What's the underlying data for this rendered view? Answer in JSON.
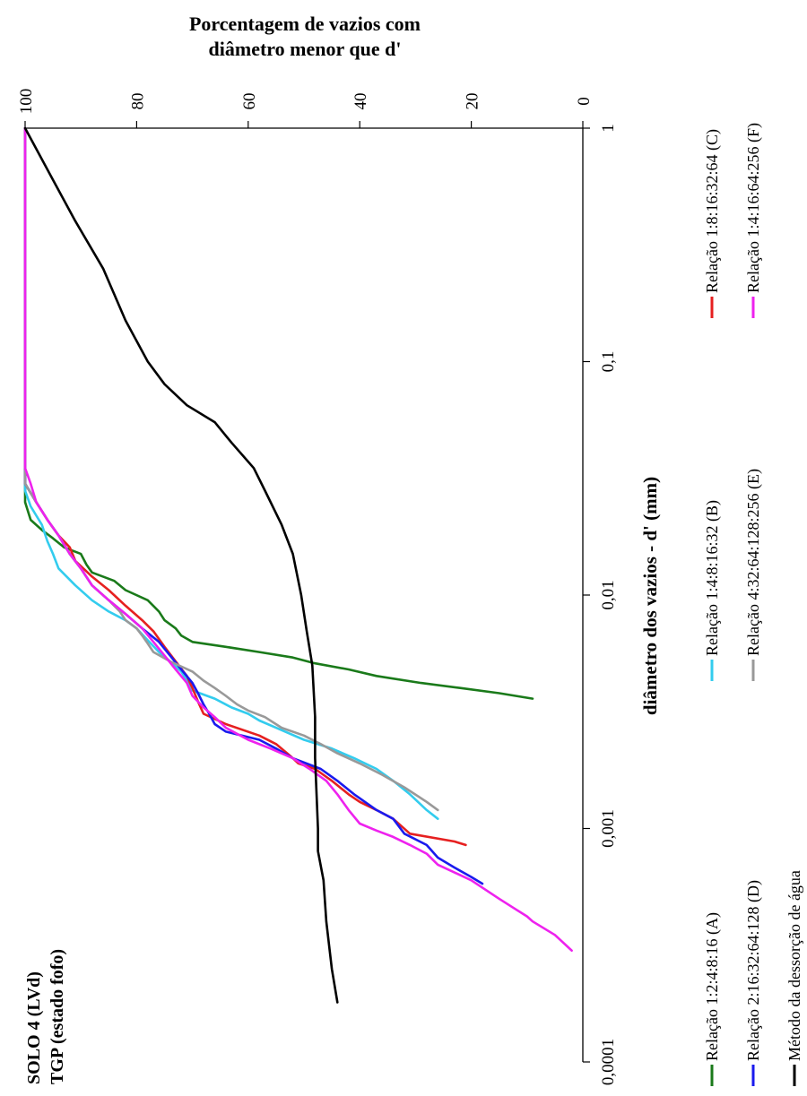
{
  "chart_data": {
    "type": "line",
    "title": "Porcentagem de vazios com diâmetro menor que d'",
    "title_lines": [
      "Porcentagem de vazios com",
      "diâmetro menor que d'"
    ],
    "subtitle_lines": [
      "SOLO 4 (LVd)",
      "TGP (estado fofo)"
    ],
    "xlabel": "diâmetro dos vazios - d' (mm)",
    "ylabel": "Porcentagem de vazios com diâmetro menor que d'",
    "x_scale": "log",
    "x_ticks": [
      "0,0001",
      "0,001",
      "0,01",
      "0,1",
      "1"
    ],
    "y_ticks": [
      "100",
      "80",
      "60",
      "40",
      "20",
      "0"
    ],
    "xlim": [
      0.0001,
      1
    ],
    "ylim": [
      0,
      100
    ],
    "grid": false,
    "orientation": "rotated 90° counter-clockwise",
    "legend_position": "bottom",
    "series": [
      {
        "name": "Relação 1:2:4:8:16 (A)",
        "color": "#1a7a1a",
        "points": [
          [
            1,
            100
          ],
          [
            0.025,
            100
          ],
          [
            0.021,
            99
          ],
          [
            0.019,
            97
          ],
          [
            0.0175,
            95
          ],
          [
            0.016,
            93
          ],
          [
            0.015,
            90
          ],
          [
            0.0135,
            89
          ],
          [
            0.0125,
            88
          ],
          [
            0.0115,
            84
          ],
          [
            0.0105,
            82
          ],
          [
            0.0095,
            78
          ],
          [
            0.0085,
            76
          ],
          [
            0.0078,
            75
          ],
          [
            0.0072,
            73
          ],
          [
            0.0067,
            72
          ],
          [
            0.0063,
            70
          ],
          [
            0.006,
            64
          ],
          [
            0.0057,
            58
          ],
          [
            0.0054,
            52
          ],
          [
            0.0051,
            48
          ],
          [
            0.0048,
            42
          ],
          [
            0.0045,
            37
          ],
          [
            0.0042,
            29
          ],
          [
            0.004,
            22
          ],
          [
            0.0038,
            15
          ],
          [
            0.0036,
            9
          ]
        ]
      },
      {
        "name": "Relação 1:4:8:16:32 (B)",
        "color": "#33ccee",
        "points": [
          [
            1,
            100
          ],
          [
            0.028,
            100
          ],
          [
            0.024,
            99
          ],
          [
            0.02,
            97
          ],
          [
            0.017,
            96
          ],
          [
            0.015,
            95
          ],
          [
            0.013,
            94
          ],
          [
            0.011,
            91
          ],
          [
            0.0095,
            88
          ],
          [
            0.0085,
            85
          ],
          [
            0.0078,
            82
          ],
          [
            0.0072,
            80
          ],
          [
            0.0064,
            78
          ],
          [
            0.0057,
            76
          ],
          [
            0.0052,
            74
          ],
          [
            0.0047,
            72
          ],
          [
            0.0043,
            71
          ],
          [
            0.0039,
            70
          ],
          [
            0.0036,
            66
          ],
          [
            0.0033,
            63
          ],
          [
            0.0031,
            60
          ],
          [
            0.0029,
            58
          ],
          [
            0.0027,
            55
          ],
          [
            0.0024,
            50
          ],
          [
            0.0022,
            45
          ],
          [
            0.002,
            41
          ],
          [
            0.0018,
            37
          ],
          [
            0.0016,
            34
          ],
          [
            0.0014,
            31
          ],
          [
            0.0012,
            28
          ],
          [
            0.0011,
            26
          ]
        ]
      },
      {
        "name": "Relação 1:8:16:32:64 (C)",
        "color": "#e62020",
        "points": [
          [
            1,
            100
          ],
          [
            0.03,
            100
          ],
          [
            0.025,
            98
          ],
          [
            0.021,
            96
          ],
          [
            0.018,
            94
          ],
          [
            0.016,
            92
          ],
          [
            0.014,
            91
          ],
          [
            0.012,
            88
          ],
          [
            0.0105,
            85
          ],
          [
            0.009,
            82
          ],
          [
            0.0078,
            79
          ],
          [
            0.007,
            77
          ],
          [
            0.006,
            75
          ],
          [
            0.0052,
            73
          ],
          [
            0.0045,
            71
          ],
          [
            0.004,
            70
          ],
          [
            0.0035,
            69
          ],
          [
            0.0031,
            68
          ],
          [
            0.0028,
            64
          ],
          [
            0.0025,
            58
          ],
          [
            0.0023,
            55
          ],
          [
            0.0021,
            53
          ],
          [
            0.002,
            52
          ],
          [
            0.0019,
            51
          ],
          [
            0.0018,
            48
          ],
          [
            0.0016,
            45
          ],
          [
            0.0014,
            42
          ],
          [
            0.0013,
            40
          ],
          [
            0.0012,
            37
          ],
          [
            0.0011,
            34
          ],
          [
            0.00095,
            31
          ],
          [
            0.00088,
            23
          ],
          [
            0.00085,
            21
          ]
        ]
      },
      {
        "name": "Relação 2:16:32:64:128 (D)",
        "color": "#1a1aee",
        "points": [
          [
            1,
            100
          ],
          [
            0.03,
            100
          ],
          [
            0.025,
            98
          ],
          [
            0.021,
            96
          ],
          [
            0.018,
            94
          ],
          [
            0.015,
            92
          ],
          [
            0.013,
            90
          ],
          [
            0.011,
            88
          ],
          [
            0.0095,
            85
          ],
          [
            0.0083,
            82
          ],
          [
            0.0072,
            79
          ],
          [
            0.0063,
            76
          ],
          [
            0.0055,
            74
          ],
          [
            0.0048,
            72
          ],
          [
            0.0042,
            70
          ],
          [
            0.0038,
            69
          ],
          [
            0.0034,
            68
          ],
          [
            0.0031,
            67
          ],
          [
            0.0028,
            66
          ],
          [
            0.0026,
            64
          ],
          [
            0.0024,
            58
          ],
          [
            0.0022,
            55
          ],
          [
            0.002,
            52
          ],
          [
            0.0018,
            47
          ],
          [
            0.0016,
            44
          ],
          [
            0.0014,
            41
          ],
          [
            0.0012,
            37
          ],
          [
            0.0011,
            34
          ],
          [
            0.00095,
            32
          ],
          [
            0.00085,
            28
          ],
          [
            0.00075,
            26
          ],
          [
            0.00068,
            23
          ],
          [
            0.00062,
            20
          ],
          [
            0.00058,
            18
          ]
        ]
      },
      {
        "name": "Relação 4:32:64:128:256 (E)",
        "color": "#999999",
        "points": [
          [
            1,
            100
          ],
          [
            0.03,
            100
          ],
          [
            0.025,
            98
          ],
          [
            0.021,
            96
          ],
          [
            0.018,
            94
          ],
          [
            0.015,
            92
          ],
          [
            0.013,
            90
          ],
          [
            0.011,
            88
          ],
          [
            0.0095,
            85
          ],
          [
            0.0085,
            83
          ],
          [
            0.0078,
            82
          ],
          [
            0.0072,
            80
          ],
          [
            0.0067,
            79
          ],
          [
            0.0062,
            78
          ],
          [
            0.0057,
            77
          ],
          [
            0.0052,
            74
          ],
          [
            0.0047,
            70
          ],
          [
            0.0043,
            68
          ],
          [
            0.004,
            66
          ],
          [
            0.0037,
            64
          ],
          [
            0.0034,
            62
          ],
          [
            0.0032,
            60
          ],
          [
            0.003,
            57
          ],
          [
            0.0027,
            54
          ],
          [
            0.0025,
            50
          ],
          [
            0.0023,
            47
          ],
          [
            0.0021,
            44
          ],
          [
            0.0019,
            40
          ],
          [
            0.0017,
            36
          ],
          [
            0.0015,
            32
          ],
          [
            0.0013,
            28
          ],
          [
            0.0012,
            26
          ]
        ]
      },
      {
        "name": "Relação 1:4:16:64:256 (F)",
        "color": "#ee22ee",
        "points": [
          [
            1,
            100
          ],
          [
            0.035,
            100
          ],
          [
            0.03,
            99
          ],
          [
            0.025,
            98
          ],
          [
            0.021,
            96
          ],
          [
            0.018,
            94
          ],
          [
            0.015,
            92
          ],
          [
            0.013,
            90
          ],
          [
            0.011,
            88
          ],
          [
            0.0095,
            85
          ],
          [
            0.0083,
            82
          ],
          [
            0.0072,
            79
          ],
          [
            0.0063,
            77
          ],
          [
            0.0055,
            75
          ],
          [
            0.0048,
            73
          ],
          [
            0.0042,
            71
          ],
          [
            0.0037,
            70
          ],
          [
            0.0033,
            68
          ],
          [
            0.003,
            66
          ],
          [
            0.0027,
            64
          ],
          [
            0.0024,
            60
          ],
          [
            0.0022,
            56
          ],
          [
            0.002,
            52
          ],
          [
            0.0018,
            49
          ],
          [
            0.0016,
            46
          ],
          [
            0.0014,
            44
          ],
          [
            0.0012,
            42
          ],
          [
            0.00105,
            40
          ],
          [
            0.00098,
            37
          ],
          [
            0.00092,
            34
          ],
          [
            0.00085,
            31
          ],
          [
            0.00078,
            28
          ],
          [
            0.0007,
            26
          ],
          [
            0.0006,
            20
          ],
          [
            0.0005,
            15
          ],
          [
            0.00045,
            12
          ],
          [
            0.00042,
            10
          ],
          [
            0.0004,
            9
          ],
          [
            0.00035,
            5
          ],
          [
            0.0003,
            2
          ]
        ]
      },
      {
        "name": "Método da dessorção de água",
        "color": "#000000",
        "points": [
          [
            1,
            100
          ],
          [
            0.6,
            95
          ],
          [
            0.4,
            91
          ],
          [
            0.25,
            86
          ],
          [
            0.15,
            82
          ],
          [
            0.1,
            78
          ],
          [
            0.08,
            75
          ],
          [
            0.065,
            71
          ],
          [
            0.055,
            66
          ],
          [
            0.045,
            63
          ],
          [
            0.035,
            59
          ],
          [
            0.028,
            57
          ],
          [
            0.02,
            54
          ],
          [
            0.015,
            52
          ],
          [
            0.01,
            50.5
          ],
          [
            0.007,
            49.5
          ],
          [
            0.005,
            48.5
          ],
          [
            0.003,
            48
          ],
          [
            0.002,
            48
          ],
          [
            0.001,
            47.5
          ],
          [
            0.0008,
            47.5
          ],
          [
            0.0006,
            46.5
          ],
          [
            0.0004,
            46
          ],
          [
            0.00025,
            45
          ],
          [
            0.00018,
            44
          ]
        ]
      }
    ]
  }
}
